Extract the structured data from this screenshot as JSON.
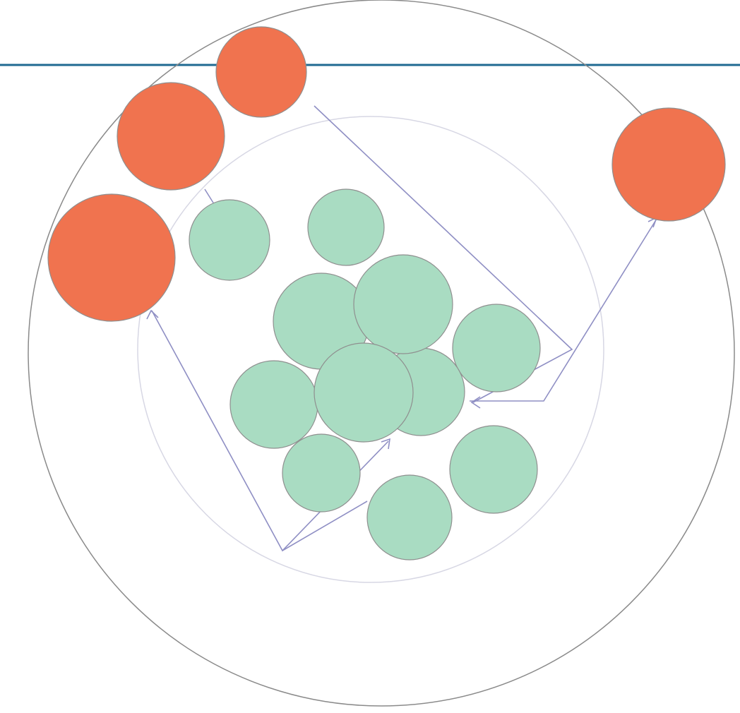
{
  "colors": {
    "outer_node_fill": "#f0734f",
    "inner_node_fill": "#a9dcc2",
    "node_stroke": "#8f8f8f",
    "arrow": "#8f8fc4",
    "top_rule": "#1f6a92",
    "outer_ring": "#8a8a8a",
    "inner_ring": "#d7d7e4",
    "label": "#4b3f88"
  },
  "outer_nodes": [
    {
      "id": "o1",
      "label": ""
    },
    {
      "id": "o2",
      "label": ""
    },
    {
      "id": "o3",
      "label": ""
    },
    {
      "id": "o4",
      "label": ""
    }
  ],
  "inner_nodes": [
    {
      "id": "i1",
      "label": ""
    },
    {
      "id": "i2",
      "label": ""
    },
    {
      "id": "i3",
      "label": ""
    },
    {
      "id": "i4",
      "label": ""
    },
    {
      "id": "i5",
      "label": ""
    },
    {
      "id": "i6",
      "label": ""
    },
    {
      "id": "i7",
      "label": ""
    },
    {
      "id": "i8",
      "label": ""
    },
    {
      "id": "i9",
      "label": ""
    },
    {
      "id": "i10",
      "label": ""
    },
    {
      "id": "i11",
      "label": ""
    },
    {
      "id": "i12",
      "label": ""
    }
  ]
}
